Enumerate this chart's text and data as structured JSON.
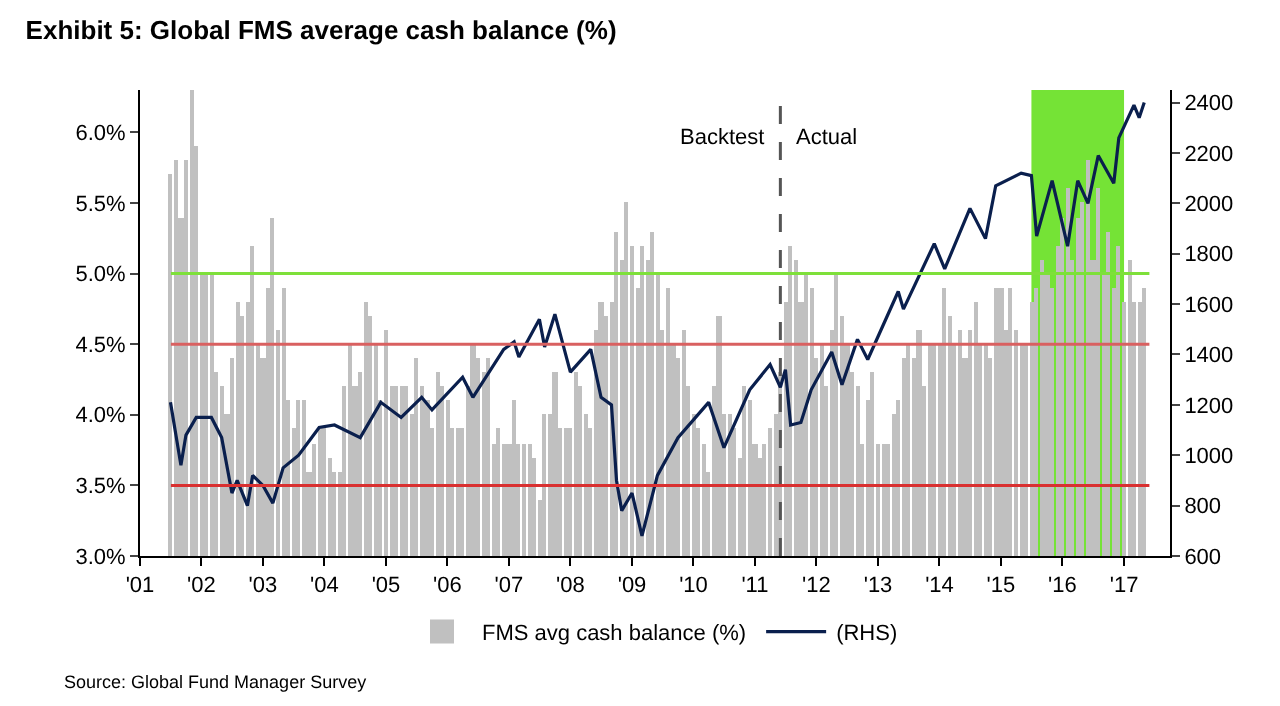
{
  "chart_data": {
    "type": "bar",
    "title": "Exhibit 5: Global FMS average cash balance (%)",
    "x": [
      "2001-07",
      "2001-08",
      "2001-09",
      "2001-10",
      "2001-11",
      "2001-12",
      "2002-01",
      "2002-02",
      "2002-03",
      "2002-04",
      "2002-05",
      "2002-06",
      "2002-07",
      "2002-08",
      "2002-09",
      "2002-10",
      "2002-11",
      "2002-12",
      "2003-01",
      "2003-02",
      "2003-03",
      "2003-04",
      "2003-05",
      "2003-06",
      "2003-07",
      "2003-08",
      "2003-09",
      "2003-10",
      "2003-11",
      "2003-12",
      "2004-01",
      "2004-02",
      "2004-03",
      "2004-04",
      "2004-05",
      "2004-06",
      "2004-07",
      "2004-08",
      "2004-09",
      "2004-10",
      "2004-11",
      "2004-12",
      "2005-01",
      "2005-02",
      "2005-03",
      "2005-04",
      "2005-05",
      "2005-06",
      "2005-07",
      "2005-08",
      "2005-09",
      "2005-10",
      "2005-11",
      "2005-12",
      "2006-01",
      "2006-02",
      "2006-03",
      "2006-04",
      "2006-05",
      "2006-06",
      "2006-07",
      "2006-08",
      "2006-09",
      "2006-10",
      "2006-11",
      "2006-12",
      "2007-01",
      "2007-02",
      "2007-03",
      "2007-04",
      "2007-05",
      "2007-06",
      "2007-07",
      "2007-08",
      "2007-09",
      "2007-10",
      "2007-11",
      "2007-12",
      "2008-01",
      "2008-02",
      "2008-03",
      "2008-04",
      "2008-05",
      "2008-06",
      "2008-07",
      "2008-08",
      "2008-09",
      "2008-10",
      "2008-11",
      "2008-12",
      "2009-01",
      "2009-02",
      "2009-03",
      "2009-04",
      "2009-05",
      "2009-06",
      "2009-07",
      "2009-08",
      "2009-09",
      "2009-10",
      "2009-11",
      "2009-12",
      "2010-01",
      "2010-02",
      "2010-03",
      "2010-04",
      "2010-05",
      "2010-06",
      "2010-07",
      "2010-08",
      "2010-09",
      "2010-10",
      "2010-11",
      "2010-12",
      "2011-01",
      "2011-02",
      "2011-03",
      "2011-04",
      "2011-05",
      "2011-06",
      "2011-07",
      "2011-08",
      "2011-09",
      "2011-10",
      "2011-11",
      "2011-12",
      "2012-01",
      "2012-02",
      "2012-03",
      "2012-04",
      "2012-05",
      "2012-06",
      "2012-07",
      "2012-08",
      "2012-09",
      "2012-10",
      "2012-11",
      "2012-12",
      "2013-01",
      "2013-02",
      "2013-03",
      "2013-04",
      "2013-05",
      "2013-06",
      "2013-07",
      "2013-08",
      "2013-09",
      "2013-10",
      "2013-11",
      "2013-12",
      "2014-01",
      "2014-02",
      "2014-03",
      "2014-04",
      "2014-05",
      "2014-06",
      "2014-07",
      "2014-08",
      "2014-09",
      "2014-10",
      "2014-11",
      "2014-12",
      "2015-01",
      "2015-02",
      "2015-03",
      "2015-04",
      "2015-05",
      "2015-06",
      "2015-07",
      "2015-08",
      "2015-09",
      "2015-10",
      "2015-11",
      "2015-12",
      "2016-01",
      "2016-02",
      "2016-03",
      "2016-04",
      "2016-05",
      "2016-06",
      "2016-07",
      "2016-08",
      "2016-09",
      "2016-10",
      "2016-11",
      "2016-12",
      "2017-01",
      "2017-02",
      "2017-03",
      "2017-04",
      "2017-05"
    ],
    "series": [
      {
        "name": "FMS avg cash balance (%)",
        "color": "#c0c0c0",
        "values": [
          5.7,
          5.8,
          5.4,
          5.8,
          6.3,
          5.9,
          5.0,
          5.0,
          5.0,
          4.3,
          4.2,
          4.0,
          4.4,
          4.8,
          4.7,
          4.8,
          5.2,
          4.5,
          4.4,
          4.9,
          5.4,
          4.6,
          4.9,
          4.1,
          3.9,
          4.1,
          4.1,
          3.6,
          3.8,
          3.9,
          3.9,
          3.7,
          3.6,
          3.6,
          4.2,
          4.5,
          4.2,
          4.3,
          4.8,
          4.7,
          4.5,
          4.1,
          4.6,
          4.2,
          4.2,
          4.2,
          4.2,
          4.0,
          4.4,
          4.2,
          4.1,
          3.9,
          4.3,
          4.2,
          4.1,
          3.9,
          3.9,
          3.9,
          4.2,
          4.5,
          4.4,
          4.3,
          4.4,
          3.8,
          3.9,
          3.8,
          3.8,
          4.1,
          3.8,
          3.8,
          3.8,
          3.7,
          3.4,
          4.0,
          4.0,
          4.3,
          3.9,
          3.9,
          3.9,
          4.3,
          4.2,
          4.0,
          3.9,
          4.6,
          4.8,
          4.7,
          4.8,
          5.3,
          5.1,
          5.5,
          5.2,
          4.9,
          5.2,
          5.1,
          5.3,
          5.0,
          4.6,
          4.9,
          4.5,
          4.4,
          4.6,
          4.2,
          4.0,
          3.9,
          3.8,
          3.6,
          4.2,
          4.7,
          4.0,
          4.0,
          3.9,
          3.7,
          4.2,
          4.1,
          3.8,
          3.7,
          3.8,
          3.9,
          4.0,
          4.3,
          4.8,
          5.2,
          5.1,
          4.8,
          5.0,
          4.9,
          4.4,
          4.5,
          4.2,
          4.6,
          5.0,
          4.7,
          4.5,
          4.3,
          4.2,
          3.8,
          4.1,
          4.3,
          3.8,
          3.8,
          3.8,
          4.0,
          4.1,
          4.4,
          4.5,
          4.4,
          4.6,
          4.2,
          4.5,
          4.5,
          4.5,
          4.9,
          4.7,
          4.5,
          4.6,
          4.4,
          4.6,
          4.8,
          4.5,
          4.5,
          4.4,
          4.9,
          4.9,
          4.6,
          4.9,
          4.6,
          4.5,
          4.5,
          4.8,
          4.9,
          5.1,
          5.0,
          4.9,
          5.2,
          5.4,
          5.6,
          5.1,
          5.4,
          5.5,
          5.8,
          5.1,
          5.6,
          5.0,
          5.3,
          4.9,
          5.2,
          4.8,
          5.1,
          4.8,
          4.8,
          4.9
        ]
      },
      {
        "name": "(RHS)",
        "type": "line",
        "axis": "y2",
        "color": "#0a1f4d",
        "x": [
          "2001-07",
          "2001-09",
          "2001-10",
          "2001-12",
          "2002-03",
          "2002-05",
          "2002-07",
          "2002-08",
          "2002-10",
          "2002-11",
          "2003-01",
          "2003-03",
          "2003-05",
          "2003-08",
          "2003-12",
          "2004-03",
          "2004-08",
          "2004-12",
          "2005-04",
          "2005-08",
          "2005-10",
          "2006-04",
          "2006-06",
          "2006-12",
          "2007-02",
          "2007-03",
          "2007-07",
          "2007-08",
          "2007-10",
          "2008-01",
          "2008-05",
          "2008-07",
          "2008-09",
          "2008-10",
          "2008-11",
          "2009-01",
          "2009-03",
          "2009-06",
          "2009-10",
          "2010-04",
          "2010-07",
          "2010-12",
          "2011-04",
          "2011-06",
          "2011-07",
          "2011-08",
          "2011-10",
          "2011-12",
          "2012-04",
          "2012-06",
          "2012-09",
          "2012-11",
          "2013-05",
          "2013-06",
          "2013-12",
          "2014-02",
          "2014-07",
          "2014-10",
          "2014-12",
          "2015-05",
          "2015-07",
          "2015-08",
          "2015-11",
          "2016-02",
          "2016-04",
          "2016-06",
          "2016-08",
          "2016-11",
          "2016-12",
          "2017-03",
          "2017-04",
          "2017-05"
        ],
        "values": [
          1210,
          960,
          1080,
          1150,
          1150,
          1070,
          850,
          900,
          800,
          920,
          880,
          810,
          950,
          1000,
          1110,
          1120,
          1070,
          1210,
          1150,
          1230,
          1180,
          1310,
          1230,
          1420,
          1450,
          1390,
          1540,
          1430,
          1560,
          1330,
          1420,
          1230,
          1200,
          900,
          780,
          850,
          680,
          920,
          1070,
          1210,
          1030,
          1260,
          1360,
          1270,
          1340,
          1120,
          1130,
          1260,
          1410,
          1280,
          1460,
          1380,
          1650,
          1580,
          1840,
          1740,
          1980,
          1860,
          2070,
          2120,
          2110,
          1870,
          2090,
          1830,
          2090,
          2000,
          2190,
          2080,
          2260,
          2390,
          2340,
          2400
        ]
      }
    ],
    "xlim": [
      "2001-01",
      "2017-10"
    ],
    "xticks": [
      {
        "value": "2001-01",
        "label": "'01"
      },
      {
        "value": "2002-01",
        "label": "'02"
      },
      {
        "value": "2003-01",
        "label": "'03"
      },
      {
        "value": "2004-01",
        "label": "'04"
      },
      {
        "value": "2005-01",
        "label": "'05"
      },
      {
        "value": "2006-01",
        "label": "'06"
      },
      {
        "value": "2007-01",
        "label": "'07"
      },
      {
        "value": "2008-01",
        "label": "'08"
      },
      {
        "value": "2009-01",
        "label": "'09"
      },
      {
        "value": "2010-01",
        "label": "'10"
      },
      {
        "value": "2011-01",
        "label": "'11"
      },
      {
        "value": "2012-01",
        "label": "'12"
      },
      {
        "value": "2013-01",
        "label": "'13"
      },
      {
        "value": "2014-01",
        "label": "'14"
      },
      {
        "value": "2015-01",
        "label": "'15"
      },
      {
        "value": "2016-01",
        "label": "'16"
      },
      {
        "value": "2017-01",
        "label": "'17"
      }
    ],
    "ylim": [
      3.0,
      6.3
    ],
    "yticks": [
      {
        "value": 3.0,
        "label": "3.0%"
      },
      {
        "value": 3.5,
        "label": "3.5%"
      },
      {
        "value": 4.0,
        "label": "4.0%"
      },
      {
        "value": 4.5,
        "label": "4.5%"
      },
      {
        "value": 5.0,
        "label": "5.0%"
      },
      {
        "value": 5.5,
        "label": "5.5%"
      },
      {
        "value": 6.0,
        "label": "6.0%"
      }
    ],
    "y2lim": [
      600,
      2450
    ],
    "y2ticks": [
      600,
      800,
      1000,
      1200,
      1400,
      1600,
      1800,
      2000,
      2200,
      2400
    ],
    "ref_lines": [
      {
        "axis": "y",
        "value": 5.0,
        "color": "#7ee03a"
      },
      {
        "axis": "y",
        "value": 4.5,
        "color": "#d96060"
      },
      {
        "axis": "y",
        "value": 3.5,
        "color": "#d93030"
      },
      {
        "axis": "x",
        "value": "2011-06",
        "color": "#555555",
        "line_style": "dashed"
      }
    ],
    "bands": [
      {
        "axis": "x",
        "from": "2015-07",
        "to": "2017-01",
        "color": "#66e020"
      }
    ],
    "annotations": [
      "Backtest",
      "Actual",
      "Source: Global Fund Manager Survey"
    ],
    "grid": false,
    "legend": "bottom"
  }
}
